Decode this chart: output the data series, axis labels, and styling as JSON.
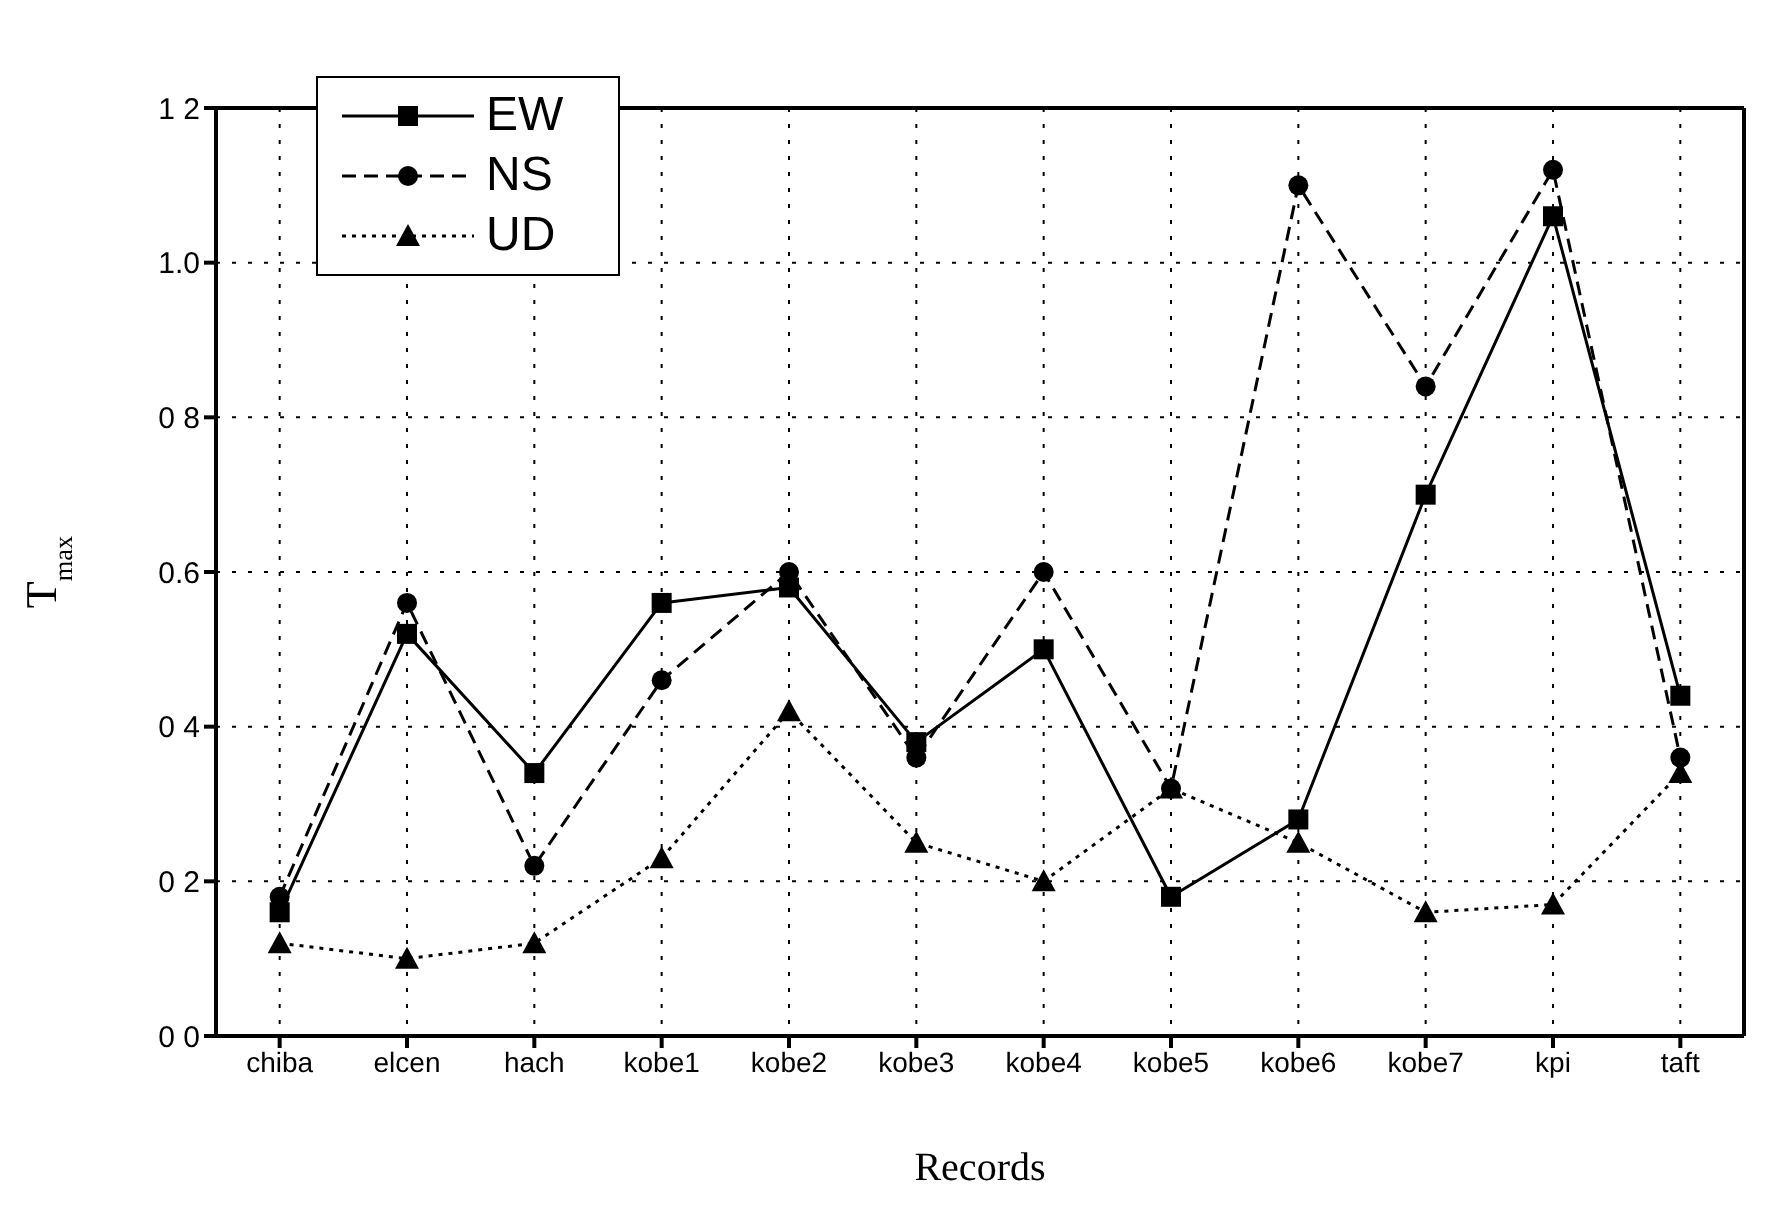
{
  "chart_data": {
    "type": "line",
    "xlabel": "Records",
    "ylabel": "T$_{max}$",
    "categories": [
      "chiba",
      "elcen",
      "hach",
      "kobe1",
      "kobe2",
      "kobe3",
      "kobe4",
      "kobe5",
      "kobe6",
      "kobe7",
      "kpi",
      "taft"
    ],
    "series": [
      {
        "name": "EW",
        "color": "#000000",
        "marker": "square",
        "line_style": "solid",
        "values": [
          0.16,
          0.52,
          0.34,
          0.56,
          0.58,
          0.38,
          0.5,
          0.18,
          0.28,
          0.7,
          1.06,
          0.44
        ]
      },
      {
        "name": "NS",
        "color": "#000000",
        "marker": "circle",
        "line_style": "dashed",
        "values": [
          0.18,
          0.56,
          0.22,
          0.46,
          0.6,
          0.36,
          0.6,
          0.32,
          1.1,
          0.84,
          1.12,
          0.36
        ]
      },
      {
        "name": "UD",
        "color": "#000000",
        "marker": "triangle",
        "line_style": "dotted",
        "values": [
          0.12,
          0.1,
          0.12,
          0.23,
          0.42,
          0.25,
          0.2,
          0.32,
          0.25,
          0.16,
          0.17,
          0.34
        ]
      }
    ],
    "ylim": [
      0,
      1.2
    ],
    "yticks": [
      {
        "value": 0,
        "label": "0 0"
      },
      {
        "value": 0.2,
        "label": "0 2"
      },
      {
        "value": 0.4,
        "label": "0 4"
      },
      {
        "value": 0.6,
        "label": "0.6"
      },
      {
        "value": 0.8,
        "label": "0 8"
      },
      {
        "value": 1.0,
        "label": "1.0"
      },
      {
        "value": 1.2,
        "label": "1 2"
      }
    ],
    "grid": true,
    "legend": "top left"
  }
}
